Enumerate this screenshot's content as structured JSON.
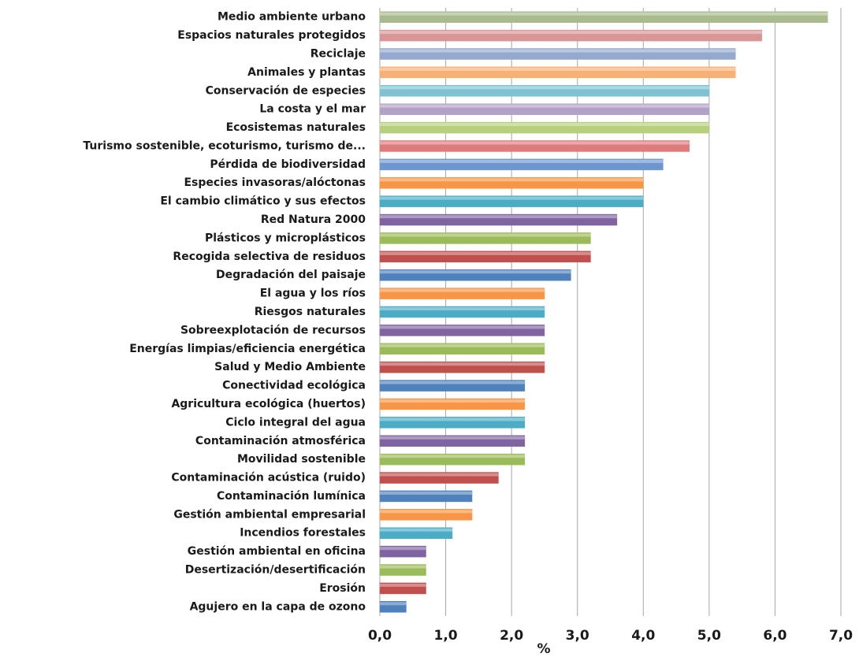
{
  "chart_data": {
    "type": "bar",
    "orientation": "horizontal",
    "categories": [
      "Medio ambiente urbano",
      "Espacios naturales protegidos",
      "Reciclaje",
      "Animales y plantas",
      "Conservación de especies",
      "La costa y el mar",
      "Ecosistemas naturales",
      "Turismo sostenible, ecoturismo, turismo de...",
      "Pérdida de biodiversidad",
      "Especies invasoras/alóctonas",
      "El cambio climático y sus efectos",
      "Red Natura 2000",
      "Plásticos y microplásticos",
      "Recogida selectiva de residuos",
      "Degradación del paisaje",
      "El agua y los ríos",
      "Riesgos naturales",
      "Sobreexplotación de recursos",
      "Energías limpias/eficiencia energética",
      "Salud y Medio Ambiente",
      "Conectividad ecológica",
      "Agricultura ecológica (huertos)",
      "Ciclo integral del agua",
      "Contaminación atmosférica",
      "Movilidad sostenible",
      "Contaminación acústica (ruido)",
      "Contaminación lumínica",
      "Gestión ambiental empresarial",
      "Incendios forestales",
      "Gestión ambiental en oficina",
      "Desertización/desertificación",
      "Erosión",
      "Agujero en la capa de ozono"
    ],
    "values": [
      6.8,
      5.8,
      5.4,
      5.4,
      5.0,
      5.0,
      5.0,
      4.7,
      4.3,
      4.0,
      4.0,
      3.6,
      3.2,
      3.2,
      2.9,
      2.5,
      2.5,
      2.5,
      2.5,
      2.5,
      2.2,
      2.2,
      2.2,
      2.2,
      2.2,
      1.8,
      1.4,
      1.4,
      1.1,
      0.7,
      0.7,
      0.7,
      0.4
    ],
    "colors": [
      "#a9ba8c",
      "#d99694",
      "#95a9cf",
      "#f9b074",
      "#7fc3d3",
      "#b3a2c7",
      "#b6d07e",
      "#e07b7b",
      "#6f97cf",
      "#f79646",
      "#4bacc6",
      "#8064a2",
      "#9bbb59",
      "#c0504d",
      "#4f81bd",
      "#f79646",
      "#4bacc6",
      "#8064a2",
      "#9bbb59",
      "#c0504d",
      "#4f81bd",
      "#f79646",
      "#4bacc6",
      "#8064a2",
      "#9bbb59",
      "#c0504d",
      "#4f81bd",
      "#f79646",
      "#4bacc6",
      "#8064a2",
      "#9bbb59",
      "#c0504d",
      "#4f81bd"
    ],
    "xlabel": "%",
    "xlim": [
      0,
      7
    ],
    "xticks": [
      {
        "value": 0,
        "label": "0,0"
      },
      {
        "value": 1,
        "label": "1,0"
      },
      {
        "value": 2,
        "label": "2,0"
      },
      {
        "value": 3,
        "label": "3,0"
      },
      {
        "value": 4,
        "label": "4,0"
      },
      {
        "value": 5,
        "label": "5,0"
      },
      {
        "value": 6,
        "label": "6,0"
      },
      {
        "value": 7,
        "label": "7,0"
      }
    ],
    "grid": true
  }
}
